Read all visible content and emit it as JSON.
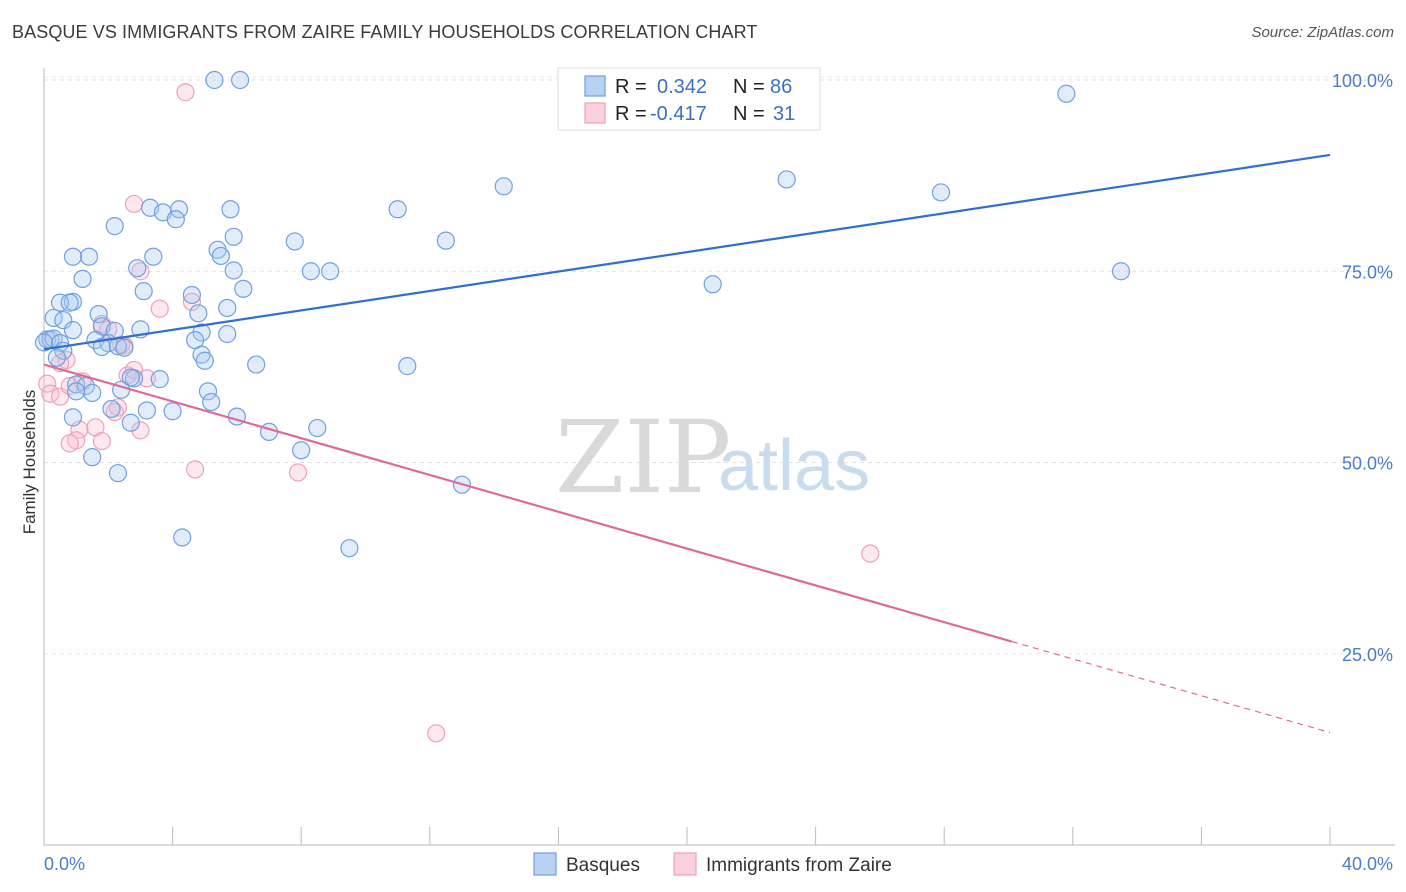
{
  "title": "BASQUE VS IMMIGRANTS FROM ZAIRE FAMILY HOUSEHOLDS CORRELATION CHART",
  "source": "Source: ZipAtlas.com",
  "watermark": {
    "zip": "ZIP",
    "atlas": "atlas"
  },
  "legend_box": {
    "rows": [
      {
        "r_label": "R =",
        "r_value": "0.342",
        "n_label": "N =",
        "n_value": "86"
      },
      {
        "r_label": "R =",
        "r_value": "-0.417",
        "n_label": "N =",
        "n_value": "31"
      }
    ]
  },
  "chart_data": {
    "type": "scatter",
    "title": "BASQUE VS IMMIGRANTS FROM ZAIRE FAMILY HOUSEHOLDS CORRELATION CHART",
    "xlabel": "",
    "ylabel": "Family Households",
    "xlim": [
      0,
      40
    ],
    "ylim": [
      0,
      100
    ],
    "x_tick_labels": [
      "0.0%",
      "40.0%"
    ],
    "y_tick_labels": [
      "25.0%",
      "50.0%",
      "75.0%",
      "100.0%"
    ],
    "y_ticks": [
      25,
      50,
      75,
      100
    ],
    "grid": true,
    "legend_position": "top-center",
    "colors": {
      "basques": "#6fa0e0",
      "zaire": "#f0a0b8",
      "basques_line": "#2f6fce",
      "zaire_line": "#e06a93"
    },
    "series": [
      {
        "name": "Basques",
        "r": 0.342,
        "n": 86,
        "trend": {
          "x": [
            0,
            40
          ],
          "y": [
            64.8,
            90.2
          ]
        },
        "points": [
          [
            5.3,
            100
          ],
          [
            6.1,
            100
          ],
          [
            31.8,
            98.2
          ],
          [
            14.3,
            86.1
          ],
          [
            23.1,
            87.0
          ],
          [
            27.9,
            85.3
          ],
          [
            11.0,
            83.1
          ],
          [
            3.3,
            83.3
          ],
          [
            4.2,
            83.1
          ],
          [
            5.8,
            83.1
          ],
          [
            3.7,
            82.7
          ],
          [
            4.1,
            81.8
          ],
          [
            2.2,
            80.9
          ],
          [
            1.4,
            76.9
          ],
          [
            0.9,
            76.9
          ],
          [
            5.9,
            79.5
          ],
          [
            7.8,
            78.9
          ],
          [
            12.5,
            79.0
          ],
          [
            5.4,
            77.8
          ],
          [
            5.5,
            77.0
          ],
          [
            3.4,
            76.9
          ],
          [
            2.9,
            75.4
          ],
          [
            5.9,
            75.1
          ],
          [
            8.3,
            75.0
          ],
          [
            8.9,
            75.0
          ],
          [
            33.5,
            75.0
          ],
          [
            1.2,
            74.0
          ],
          [
            20.8,
            73.3
          ],
          [
            6.2,
            72.7
          ],
          [
            3.1,
            72.4
          ],
          [
            4.6,
            71.9
          ],
          [
            0.9,
            71.0
          ],
          [
            0.5,
            70.9
          ],
          [
            0.8,
            70.9
          ],
          [
            5.7,
            70.2
          ],
          [
            4.8,
            69.5
          ],
          [
            1.7,
            69.4
          ],
          [
            0.3,
            68.9
          ],
          [
            0.6,
            68.6
          ],
          [
            1.8,
            67.8
          ],
          [
            3.0,
            67.4
          ],
          [
            0.9,
            67.3
          ],
          [
            2.2,
            67.2
          ],
          [
            4.9,
            67.0
          ],
          [
            5.7,
            66.8
          ],
          [
            0.1,
            66.1
          ],
          [
            0.2,
            66.1
          ],
          [
            0.3,
            66.2
          ],
          [
            1.6,
            66.0
          ],
          [
            0.0,
            65.7
          ],
          [
            0.5,
            65.6
          ],
          [
            2.0,
            65.6
          ],
          [
            4.7,
            66.0
          ],
          [
            1.8,
            65.1
          ],
          [
            2.3,
            65.2
          ],
          [
            2.5,
            65.0
          ],
          [
            0.6,
            64.6
          ],
          [
            4.9,
            64.1
          ],
          [
            0.4,
            63.7
          ],
          [
            5.0,
            63.3
          ],
          [
            6.6,
            62.8
          ],
          [
            11.3,
            62.6
          ],
          [
            2.8,
            61.0
          ],
          [
            3.6,
            60.9
          ],
          [
            2.7,
            61.1
          ],
          [
            1.0,
            60.2
          ],
          [
            1.3,
            60.0
          ],
          [
            5.1,
            59.3
          ],
          [
            1.5,
            59.1
          ],
          [
            1.0,
            59.3
          ],
          [
            2.4,
            59.5
          ],
          [
            5.2,
            57.9
          ],
          [
            3.2,
            56.8
          ],
          [
            4.0,
            56.7
          ],
          [
            2.7,
            55.2
          ],
          [
            2.1,
            57.0
          ],
          [
            7.0,
            54.0
          ],
          [
            8.5,
            54.5
          ],
          [
            8.0,
            51.6
          ],
          [
            1.5,
            50.7
          ],
          [
            13.0,
            47.1
          ],
          [
            2.3,
            48.6
          ],
          [
            4.3,
            40.2
          ],
          [
            9.5,
            38.8
          ],
          [
            0.9,
            55.9
          ],
          [
            6.0,
            56.0
          ]
        ]
      },
      {
        "name": "Immigrants from Zaire",
        "r": -0.417,
        "n": 31,
        "trend": {
          "x": [
            0,
            30.1
          ],
          "y": [
            62.8,
            26.6
          ]
        },
        "trend_dashed": {
          "x": [
            30.1,
            40
          ],
          "y": [
            26.6,
            14.7
          ]
        },
        "points": [
          [
            4.4,
            98.4
          ],
          [
            2.8,
            83.8
          ],
          [
            3.0,
            75.0
          ],
          [
            4.6,
            71.0
          ],
          [
            3.6,
            70.1
          ],
          [
            1.8,
            68.1
          ],
          [
            2.0,
            67.4
          ],
          [
            2.5,
            65.3
          ],
          [
            2.4,
            65.4
          ],
          [
            0.7,
            63.4
          ],
          [
            0.5,
            63.0
          ],
          [
            0.1,
            60.3
          ],
          [
            0.2,
            59.0
          ],
          [
            0.5,
            58.6
          ],
          [
            1.2,
            60.6
          ],
          [
            0.8,
            60.0
          ],
          [
            2.6,
            61.4
          ],
          [
            2.8,
            62.1
          ],
          [
            2.3,
            57.2
          ],
          [
            1.6,
            54.6
          ],
          [
            1.1,
            54.3
          ],
          [
            1.0,
            52.9
          ],
          [
            0.8,
            52.5
          ],
          [
            1.8,
            52.8
          ],
          [
            3.0,
            54.2
          ],
          [
            3.2,
            61.0
          ],
          [
            2.2,
            56.6
          ],
          [
            4.7,
            49.1
          ],
          [
            7.9,
            48.7
          ],
          [
            25.7,
            38.1
          ],
          [
            12.2,
            14.6
          ]
        ]
      }
    ]
  }
}
